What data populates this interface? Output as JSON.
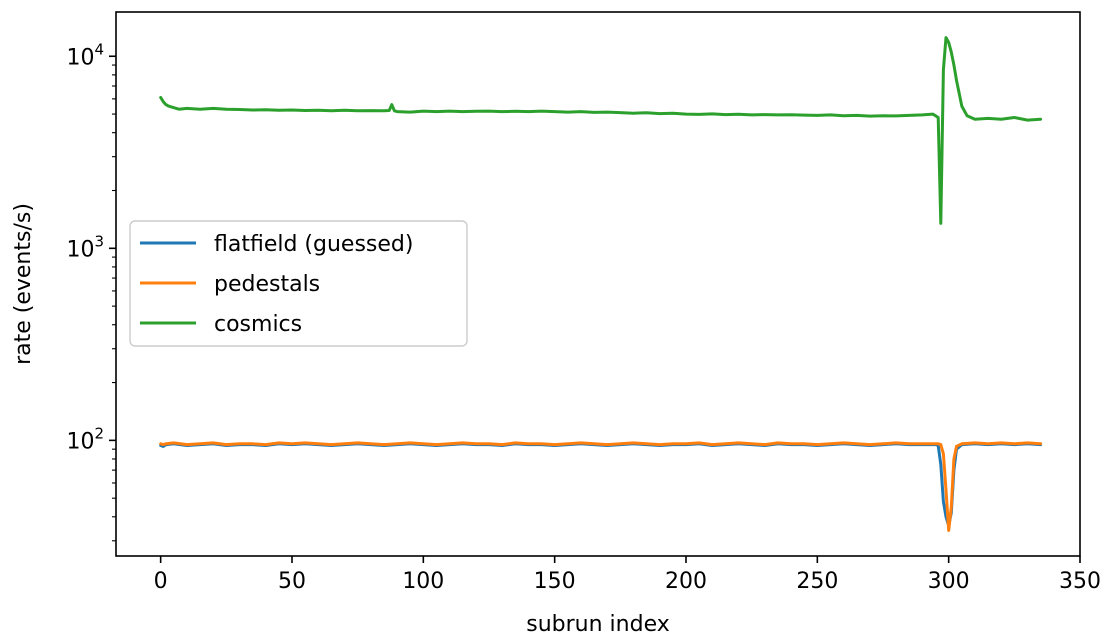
{
  "chart_data": {
    "type": "line",
    "title": "",
    "xlabel": "subrun index",
    "ylabel": "rate (events/s)",
    "xlim": [
      -17,
      350
    ],
    "ylim": [
      25,
      17000
    ],
    "yscale": "log",
    "grid": false,
    "legend_position": "center-left",
    "xticks": [
      0,
      50,
      100,
      150,
      200,
      250,
      300,
      350
    ],
    "xtick_labels": [
      "0",
      "50",
      "100",
      "150",
      "200",
      "250",
      "300",
      "350"
    ],
    "yticks": [
      {
        "value": 100,
        "base": "10",
        "exp": "2"
      },
      {
        "value": 1000,
        "base": "10",
        "exp": "3"
      },
      {
        "value": 10000,
        "base": "10",
        "exp": "4"
      }
    ],
    "series": [
      {
        "name": "flatfield (guessed)",
        "color": "#1f77b4",
        "x": [
          0,
          1,
          2,
          5,
          10,
          15,
          20,
          25,
          30,
          35,
          40,
          45,
          50,
          55,
          60,
          65,
          70,
          75,
          80,
          85,
          90,
          95,
          100,
          105,
          110,
          115,
          120,
          125,
          130,
          135,
          140,
          145,
          150,
          155,
          160,
          165,
          170,
          175,
          180,
          185,
          190,
          195,
          200,
          205,
          210,
          215,
          220,
          225,
          230,
          235,
          240,
          245,
          250,
          255,
          260,
          265,
          270,
          275,
          280,
          285,
          290,
          295,
          296,
          297,
          298,
          299,
          300,
          301,
          302,
          303,
          305,
          310,
          315,
          320,
          325,
          330,
          335
        ],
        "y": [
          94,
          93,
          95,
          96,
          94,
          95,
          96,
          94,
          95,
          95,
          94,
          96,
          95,
          96,
          95,
          94,
          95,
          96,
          95,
          94,
          95,
          96,
          95,
          94,
          95,
          96,
          95,
          95,
          94,
          96,
          95,
          95,
          94,
          95,
          96,
          95,
          94,
          95,
          96,
          95,
          94,
          95,
          95,
          96,
          94,
          95,
          96,
          95,
          94,
          96,
          95,
          95,
          94,
          95,
          96,
          95,
          94,
          95,
          96,
          95,
          95,
          95,
          94,
          75,
          48,
          40,
          36,
          42,
          70,
          90,
          95,
          96,
          95,
          96,
          95,
          96,
          95
        ]
      },
      {
        "name": "pedestals",
        "color": "#ff7f0e",
        "x": [
          0,
          1,
          2,
          5,
          10,
          15,
          20,
          25,
          30,
          35,
          40,
          45,
          50,
          55,
          60,
          65,
          70,
          75,
          80,
          85,
          90,
          95,
          100,
          105,
          110,
          115,
          120,
          125,
          130,
          135,
          140,
          145,
          150,
          155,
          160,
          165,
          170,
          175,
          180,
          185,
          190,
          195,
          200,
          205,
          210,
          215,
          220,
          225,
          230,
          235,
          240,
          245,
          250,
          255,
          260,
          265,
          270,
          275,
          280,
          285,
          290,
          295,
          296,
          297,
          298,
          299,
          300,
          301,
          302,
          303,
          305,
          310,
          315,
          320,
          325,
          330,
          335
        ],
        "y": [
          96,
          95,
          96,
          97,
          95,
          96,
          97,
          95,
          96,
          96,
          95,
          97,
          96,
          97,
          96,
          95,
          96,
          97,
          96,
          95,
          96,
          97,
          96,
          95,
          96,
          97,
          96,
          96,
          95,
          97,
          96,
          96,
          95,
          96,
          97,
          96,
          95,
          96,
          97,
          96,
          95,
          96,
          96,
          97,
          95,
          96,
          97,
          96,
          95,
          97,
          96,
          96,
          95,
          96,
          97,
          96,
          95,
          96,
          97,
          96,
          96,
          96,
          96,
          95,
          85,
          55,
          34,
          45,
          80,
          93,
          96,
          97,
          96,
          97,
          96,
          97,
          96
        ]
      },
      {
        "name": "cosmics",
        "color": "#2ca02c",
        "x": [
          0,
          1,
          2,
          3,
          5,
          7,
          10,
          15,
          20,
          25,
          30,
          35,
          40,
          45,
          50,
          55,
          60,
          65,
          70,
          75,
          80,
          85,
          87,
          88,
          89,
          90,
          95,
          100,
          105,
          110,
          115,
          120,
          125,
          130,
          135,
          140,
          145,
          150,
          155,
          160,
          165,
          170,
          175,
          180,
          185,
          190,
          195,
          200,
          205,
          210,
          215,
          220,
          225,
          230,
          235,
          240,
          245,
          250,
          255,
          260,
          265,
          270,
          275,
          280,
          285,
          290,
          294,
          295,
          296,
          297,
          298,
          299,
          300,
          301,
          302,
          303,
          305,
          307,
          310,
          315,
          320,
          325,
          330,
          335
        ],
        "y": [
          6100,
          5800,
          5600,
          5500,
          5400,
          5300,
          5350,
          5300,
          5350,
          5300,
          5280,
          5250,
          5270,
          5230,
          5250,
          5220,
          5240,
          5200,
          5230,
          5200,
          5210,
          5200,
          5220,
          5600,
          5200,
          5150,
          5120,
          5180,
          5150,
          5180,
          5150,
          5170,
          5180,
          5150,
          5170,
          5150,
          5180,
          5150,
          5120,
          5150,
          5100,
          5120,
          5090,
          5050,
          5080,
          5030,
          5050,
          5000,
          4980,
          5010,
          4970,
          4990,
          4950,
          4970,
          4950,
          4960,
          4940,
          4920,
          4950,
          4900,
          4920,
          4880,
          4900,
          4890,
          4920,
          4950,
          5000,
          4900,
          4800,
          1350,
          8500,
          12500,
          11800,
          10500,
          9000,
          7500,
          5500,
          4900,
          4700,
          4750,
          4700,
          4800,
          4650,
          4700
        ]
      }
    ]
  }
}
